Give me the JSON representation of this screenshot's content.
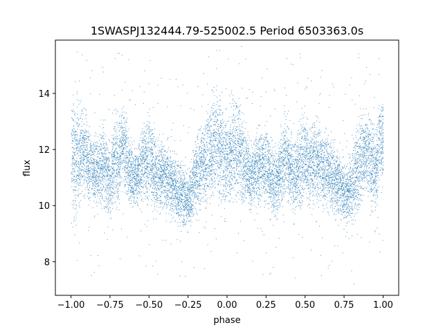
{
  "chart_data": {
    "type": "scatter",
    "title": "1SWASPJ132444.79-525002.5 Period 6503363.0s",
    "xlabel": "phase",
    "ylabel": "flux",
    "xlim": [
      -1.1,
      1.1
    ],
    "ylim": [
      6.8,
      15.9
    ],
    "xticks": [
      -1.0,
      -0.75,
      -0.5,
      -0.25,
      0.0,
      0.25,
      0.5,
      0.75,
      1.0
    ],
    "xtick_labels": [
      "−1.00",
      "−0.75",
      "−0.50",
      "−0.25",
      "0.00",
      "0.25",
      "0.50",
      "0.75",
      "1.00"
    ],
    "yticks": [
      8,
      10,
      12,
      14
    ],
    "ytick_labels": [
      "8",
      "10",
      "12",
      "14"
    ],
    "grid": false,
    "marker_color": "#1f77b4",
    "series": [
      {
        "x": [
          -1.0,
          -0.975,
          -0.95,
          -0.925,
          -0.9,
          -0.875,
          -0.85,
          -0.825,
          -0.8,
          -0.775,
          -0.75,
          -0.725,
          -0.7,
          -0.675,
          -0.65,
          -0.625,
          -0.6,
          -0.575,
          -0.55,
          -0.525,
          -0.5,
          -0.475,
          -0.45,
          -0.425,
          -0.4,
          -0.375,
          -0.35,
          -0.325,
          -0.3,
          -0.275,
          -0.25,
          -0.225,
          -0.2,
          -0.175,
          -0.15,
          -0.125,
          -0.1,
          -0.075,
          -0.05,
          -0.025,
          0.0,
          0.025,
          0.05,
          0.075,
          0.1,
          0.125,
          0.15,
          0.175,
          0.2,
          0.225,
          0.25,
          0.275,
          0.3,
          0.325,
          0.35,
          0.375,
          0.4,
          0.425,
          0.45,
          0.475,
          0.5,
          0.525,
          0.55,
          0.575,
          0.6,
          0.625,
          0.65,
          0.675,
          0.7,
          0.725,
          0.75,
          0.775,
          0.8,
          0.825,
          0.85,
          0.875,
          0.9,
          0.925,
          0.95,
          0.975,
          1.0
        ],
        "y_center": [
          12.0,
          11.6,
          11.8,
          12.0,
          11.7,
          11.4,
          11.2,
          11.3,
          11.6,
          11.2,
          10.8,
          11.8,
          11.4,
          12.2,
          11.8,
          11.3,
          11.0,
          11.1,
          11.5,
          11.7,
          11.8,
          11.4,
          11.0,
          11.2,
          11.1,
          11.0,
          10.8,
          10.5,
          10.4,
          10.3,
          10.2,
          10.6,
          11.2,
          11.4,
          11.6,
          11.8,
          12.0,
          12.3,
          12.2,
          11.8,
          11.6,
          11.9,
          12.1,
          11.9,
          11.6,
          11.4,
          11.0,
          11.2,
          11.6,
          11.4,
          11.5,
          11.1,
          10.8,
          11.0,
          11.5,
          11.8,
          11.4,
          11.0,
          11.2,
          11.6,
          11.8,
          11.4,
          11.6,
          11.8,
          11.4,
          11.2,
          11.4,
          11.0,
          10.9,
          10.8,
          10.4,
          10.5,
          10.6,
          11.2,
          11.6,
          11.8,
          12.0,
          11.5,
          11.4,
          12.2,
          12.4
        ],
        "y_spread": [
          1.6,
          1.8,
          1.5,
          1.2,
          1.2,
          1.0,
          1.0,
          1.0,
          1.2,
          1.2,
          1.0,
          1.4,
          1.3,
          1.0,
          1.1,
          1.0,
          0.9,
          0.9,
          1.0,
          1.2,
          1.3,
          1.2,
          1.0,
          1.0,
          1.0,
          1.0,
          1.0,
          0.9,
          0.9,
          0.8,
          0.8,
          1.0,
          1.2,
          1.2,
          1.2,
          1.4,
          1.5,
          1.4,
          1.6,
          1.4,
          1.3,
          1.4,
          1.5,
          1.3,
          1.2,
          1.1,
          1.0,
          1.0,
          1.2,
          1.0,
          1.2,
          1.0,
          1.0,
          1.0,
          1.2,
          1.2,
          1.1,
          1.0,
          1.1,
          1.3,
          1.3,
          1.2,
          1.2,
          1.3,
          1.1,
          1.1,
          1.1,
          1.0,
          1.0,
          0.9,
          0.9,
          0.9,
          1.0,
          1.3,
          1.3,
          1.2,
          1.3,
          1.3,
          1.2,
          1.3,
          1.4
        ]
      }
    ]
  }
}
